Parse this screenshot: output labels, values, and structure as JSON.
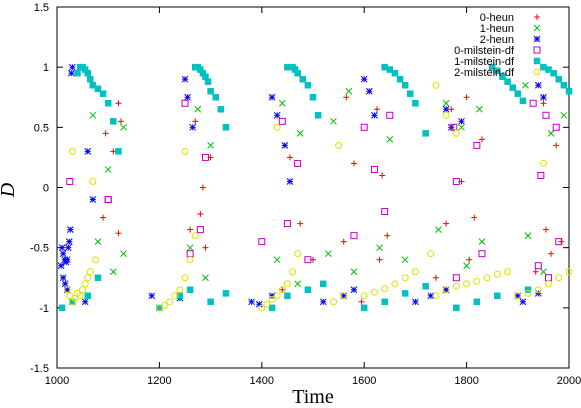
{
  "chart_data": {
    "type": "scatter",
    "title": "",
    "xlabel": "Time",
    "ylabel": "D",
    "xlim": [
      1000,
      2000
    ],
    "ylim": [
      -1.5,
      1.5
    ],
    "xticks": [
      1000,
      1200,
      1400,
      1600,
      1800,
      2000
    ],
    "xtick_labels": [
      "1000",
      "1200",
      "1400",
      "1600",
      "1800",
      "2000"
    ],
    "yticks": [
      -1.5,
      -1,
      -0.5,
      0,
      0.5,
      1,
      1.5
    ],
    "ytick_labels": [
      "-1.5",
      "-1",
      "-0.5",
      "0",
      "0.5",
      "1",
      "1.5"
    ],
    "grid": false,
    "legend_position": "top-right",
    "series": [
      {
        "name": "0-heun",
        "marker": "plus",
        "color": "#ff0000",
        "x": [
          1095,
          1110,
          1120,
          1125,
          1270,
          1285,
          1300,
          1455,
          1500,
          1565,
          1580,
          1625,
          1635,
          1770,
          1790,
          1800,
          1830,
          1950,
          1975,
          1090,
          1120,
          1260,
          1280,
          1290,
          1440,
          1475,
          1560,
          1595,
          1630,
          1645,
          1740,
          1760,
          1805,
          1815,
          1935,
          1955,
          1965,
          1985
        ],
        "y": [
          0.45,
          0.3,
          0.7,
          0.55,
          0.55,
          0.0,
          0.25,
          0.25,
          -0.6,
          0.75,
          0.2,
          0.65,
          0.1,
          0.65,
          0.05,
          0.75,
          0.4,
          0.7,
          0.35,
          -0.25,
          -0.38,
          -0.35,
          -0.22,
          -0.5,
          -0.85,
          -0.3,
          -0.45,
          -0.95,
          -0.6,
          -0.4,
          -0.75,
          -0.3,
          -0.6,
          -0.25,
          -0.7,
          -0.35,
          -0.55,
          -0.45
        ]
      },
      {
        "name": "1-heun",
        "marker": "cross",
        "color": "#00c000",
        "x": [
          1070,
          1100,
          1130,
          1275,
          1300,
          1440,
          1475,
          1540,
          1570,
          1620,
          1650,
          1760,
          1790,
          1825,
          1915,
          1965,
          1990,
          1080,
          1110,
          1130,
          1260,
          1290,
          1430,
          1470,
          1530,
          1580,
          1630,
          1680,
          1745,
          1800,
          1830,
          1920,
          1950
        ],
        "y": [
          0.6,
          0.15,
          0.5,
          0.65,
          0.35,
          0.7,
          0.45,
          0.55,
          0.8,
          0.6,
          0.4,
          0.7,
          0.5,
          0.65,
          0.85,
          0.45,
          0.6,
          -0.45,
          -0.7,
          -0.55,
          -0.5,
          -0.75,
          -0.6,
          -0.8,
          -0.55,
          -0.7,
          -0.5,
          -0.6,
          -0.35,
          -0.65,
          -0.45,
          -0.4,
          -0.7
        ]
      },
      {
        "name": "2-heun",
        "marker": "star",
        "color": "#0000ff",
        "x": [
          1010,
          1012,
          1015,
          1018,
          1020,
          1022,
          1024,
          1026,
          1028,
          1030,
          1060,
          1070,
          1250,
          1255,
          1265,
          1420,
          1430,
          1445,
          1455,
          1600,
          1610,
          1620,
          1760,
          1770,
          1790,
          1940,
          1950,
          1008,
          1012,
          1016,
          1020,
          1055,
          1185,
          1200,
          1240,
          1380,
          1395,
          1420,
          1520,
          1560,
          1580,
          1700,
          1730,
          1760,
          1900,
          1910,
          1940
        ],
        "y": [
          -0.5,
          -0.55,
          -0.6,
          -0.62,
          -0.6,
          -0.5,
          -0.45,
          -0.35,
          0.95,
          1.0,
          0.3,
          -0.1,
          0.9,
          0.75,
          0.5,
          0.75,
          0.6,
          0.35,
          0.05,
          0.9,
          0.8,
          0.6,
          0.65,
          0.5,
          0.55,
          0.85,
          0.75,
          -0.65,
          -0.75,
          -0.8,
          -0.85,
          -0.95,
          -0.9,
          -1.0,
          -0.92,
          -0.95,
          -0.97,
          -0.9,
          -0.95,
          -0.9,
          -0.85,
          -0.95,
          -0.9,
          -0.85,
          -0.9,
          -0.95,
          -0.88
        ]
      },
      {
        "name": "0-milstein-df",
        "marker": "square-open",
        "color": "#c000c0",
        "x": [
          1025,
          1100,
          1250,
          1290,
          1440,
          1470,
          1600,
          1620,
          1650,
          1775,
          1780,
          1820,
          1930,
          1945,
          1955,
          1975,
          1100,
          1260,
          1280,
          1400,
          1450,
          1490,
          1580,
          1640,
          1780,
          1830,
          1940,
          1960,
          1980
        ],
        "y": [
          0.05,
          -0.1,
          0.7,
          0.25,
          0.55,
          0.2,
          0.5,
          0.15,
          0.6,
          0.5,
          0.05,
          0.35,
          0.7,
          0.1,
          0.6,
          0.5,
          -0.1,
          -0.55,
          -0.35,
          -0.45,
          -0.3,
          -0.6,
          -0.4,
          -0.2,
          -0.75,
          -0.55,
          -0.65,
          -0.75,
          -0.45
        ]
      },
      {
        "name": "1-milstein-df",
        "marker": "square-filled",
        "color": "#00c0c0",
        "x": [
          1040,
          1045,
          1050,
          1055,
          1060,
          1065,
          1070,
          1080,
          1090,
          1100,
          1110,
          1120,
          1270,
          1275,
          1280,
          1285,
          1290,
          1295,
          1300,
          1310,
          1320,
          1330,
          1450,
          1460,
          1465,
          1470,
          1480,
          1490,
          1500,
          1510,
          1640,
          1650,
          1660,
          1670,
          1680,
          1690,
          1700,
          1720,
          1850,
          1860,
          1870,
          1880,
          1890,
          1900,
          1910,
          1950,
          1960,
          1970,
          1980,
          1990,
          2000,
          1010,
          1030,
          1060,
          1080,
          1200,
          1240,
          1260,
          1300,
          1330,
          1420,
          1450,
          1490,
          1520,
          1600,
          1640,
          1680,
          1720,
          1780,
          1820,
          1860,
          1920
        ],
        "y": [
          0.95,
          1.0,
          1.0,
          0.98,
          0.95,
          0.9,
          0.85,
          0.82,
          0.78,
          0.7,
          0.55,
          0.3,
          1.0,
          1.0,
          0.98,
          0.95,
          0.92,
          0.88,
          0.8,
          0.75,
          0.65,
          0.5,
          1.0,
          1.0,
          0.98,
          0.95,
          0.9,
          0.85,
          0.75,
          0.6,
          1.0,
          0.98,
          0.95,
          0.9,
          0.85,
          0.78,
          0.7,
          0.45,
          1.0,
          0.97,
          0.92,
          0.88,
          0.83,
          0.78,
          0.72,
          1.0,
          0.98,
          0.95,
          0.9,
          0.85,
          0.8,
          -1.0,
          -0.95,
          -0.9,
          -0.75,
          -1.0,
          -0.9,
          -0.85,
          -0.95,
          -0.88,
          -1.0,
          -0.9,
          -0.85,
          -0.8,
          -1.0,
          -0.95,
          -0.88,
          -0.82,
          -1.0,
          -0.95,
          -0.9,
          -0.85
        ]
      },
      {
        "name": "2-milstein-df",
        "marker": "circle-open",
        "color": "#e0e000",
        "x": [
          1020,
          1025,
          1030,
          1035,
          1040,
          1045,
          1050,
          1055,
          1060,
          1065,
          1075,
          1200,
          1210,
          1220,
          1230,
          1240,
          1250,
          1260,
          1270,
          1400,
          1410,
          1420,
          1430,
          1440,
          1450,
          1460,
          1470,
          1540,
          1560,
          1600,
          1620,
          1640,
          1660,
          1680,
          1700,
          1730,
          1740,
          1760,
          1780,
          1800,
          1820,
          1840,
          1860,
          1880,
          1900,
          1920,
          1940,
          1960,
          1980,
          2000,
          1030,
          1070,
          1250,
          1430,
          1550,
          1740,
          1760,
          1780,
          1950
        ],
        "y": [
          -0.85,
          -0.9,
          -0.95,
          -0.92,
          -0.88,
          -0.9,
          -0.85,
          -0.8,
          -0.75,
          -0.7,
          -0.6,
          -1.0,
          -0.98,
          -0.95,
          -0.9,
          -0.85,
          -0.75,
          -0.6,
          -0.4,
          -1.0,
          -0.97,
          -0.93,
          -0.9,
          -0.85,
          -0.8,
          -0.7,
          -0.55,
          -0.95,
          -0.9,
          -0.9,
          -0.87,
          -0.84,
          -0.8,
          -0.75,
          -0.7,
          -0.55,
          -0.9,
          -0.85,
          -0.82,
          -0.8,
          -0.78,
          -0.75,
          -0.72,
          -0.7,
          -0.9,
          -0.88,
          -0.85,
          -0.8,
          -0.75,
          -0.7,
          0.3,
          0.05,
          0.3,
          0.5,
          0.35,
          0.85,
          0.6,
          0.45,
          0.2
        ]
      }
    ]
  }
}
